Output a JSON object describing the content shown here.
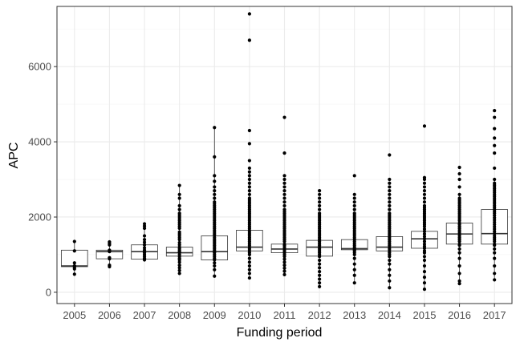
{
  "chart_data": {
    "type": "box",
    "xlabel": "Funding period",
    "ylabel": "APC",
    "ylim": [
      -300,
      7600
    ],
    "y_ticks": [
      0,
      2000,
      4000,
      6000
    ],
    "y_tick_labels": [
      "0",
      "2000",
      "4000",
      "6000"
    ],
    "categories": [
      "2005",
      "2006",
      "2007",
      "2008",
      "2009",
      "2010",
      "2011",
      "2012",
      "2013",
      "2014",
      "2015",
      "2016",
      "2017"
    ],
    "grid": true,
    "colors": {
      "panel_border": "#333333",
      "grid_major": "#ebebeb",
      "grid_minor": "#f5f5f5",
      "box_stroke": "#333333",
      "point": "#000000"
    },
    "boxes": [
      {
        "category": "2005",
        "q1": 680,
        "median": 700,
        "q3": 1120,
        "whisker_low": 480,
        "whisker_high": 1350,
        "points": [
          480,
          620,
          660,
          700,
          780,
          1100,
          1350
        ]
      },
      {
        "category": "2006",
        "q1": 890,
        "median": 1080,
        "q3": 1120,
        "whisker_low": 680,
        "whisker_high": 1340,
        "points": [
          680,
          720,
          890,
          920,
          1080,
          1100,
          1120,
          1260,
          1300,
          1340
        ]
      },
      {
        "category": "2007",
        "q1": 880,
        "median": 1080,
        "q3": 1260,
        "whisker_low": 860,
        "whisker_high": 1820,
        "points": [
          860,
          900,
          950,
          1000,
          1050,
          1080,
          1120,
          1180,
          1260,
          1330,
          1400,
          1500,
          1700,
          1760,
          1820
        ]
      },
      {
        "category": "2008",
        "q1": 960,
        "median": 1050,
        "q3": 1200,
        "whisker_low": 500,
        "whisker_high": 2840,
        "points": [
          500,
          580,
          650,
          720,
          800,
          860,
          900,
          950,
          1000,
          1050,
          1080,
          1120,
          1160,
          1200,
          1260,
          1320,
          1400,
          1450,
          1500,
          1550,
          1600,
          1700,
          1750,
          1800,
          1850,
          1900,
          1950,
          2000,
          2050,
          2100,
          2200,
          2300,
          2500,
          2600,
          2840
        ]
      },
      {
        "category": "2009",
        "q1": 860,
        "median": 1080,
        "q3": 1500,
        "whisker_low": 430,
        "whisker_high": 4380,
        "points": [
          430,
          600,
          700,
          780,
          860,
          900,
          950,
          1000,
          1050,
          1080,
          1120,
          1160,
          1200,
          1240,
          1280,
          1320,
          1360,
          1400,
          1450,
          1500,
          1550,
          1600,
          1650,
          1700,
          1750,
          1800,
          1850,
          1900,
          1950,
          2000,
          2050,
          2100,
          2150,
          2200,
          2250,
          2300,
          2350,
          2400,
          2500,
          2600,
          2700,
          2800,
          2950,
          3100,
          3600,
          4380
        ]
      },
      {
        "category": "2010",
        "q1": 1100,
        "median": 1200,
        "q3": 1650,
        "whisker_low": 380,
        "whisker_high": 3200,
        "points": [
          380,
          500,
          600,
          700,
          800,
          900,
          1000,
          1050,
          1100,
          1150,
          1200,
          1250,
          1300,
          1350,
          1400,
          1450,
          1500,
          1550,
          1600,
          1650,
          1700,
          1750,
          1800,
          1850,
          1900,
          1950,
          2000,
          2050,
          2100,
          2150,
          2200,
          2250,
          2300,
          2350,
          2400,
          2450,
          2500,
          2600,
          2700,
          2800,
          2900,
          3000,
          3100,
          3200,
          3300,
          3500,
          3950,
          4300,
          6700,
          7400
        ]
      },
      {
        "category": "2011",
        "q1": 1050,
        "median": 1150,
        "q3": 1280,
        "whisker_low": 470,
        "whisker_high": 1700,
        "points": [
          470,
          560,
          640,
          720,
          800,
          880,
          950,
          1000,
          1050,
          1100,
          1150,
          1200,
          1250,
          1280,
          1350,
          1400,
          1450,
          1500,
          1550,
          1600,
          1650,
          1700,
          1750,
          1800,
          1850,
          1900,
          1950,
          2000,
          2050,
          2100,
          2150,
          2200,
          2300,
          2400,
          2500,
          2600,
          2700,
          2800,
          2900,
          3000,
          3100,
          3700,
          4650
        ]
      },
      {
        "category": "2012",
        "q1": 960,
        "median": 1200,
        "q3": 1380,
        "whisker_low": 150,
        "whisker_high": 2000,
        "points": [
          150,
          250,
          350,
          450,
          550,
          650,
          750,
          850,
          950,
          1000,
          1050,
          1100,
          1150,
          1200,
          1250,
          1300,
          1350,
          1400,
          1450,
          1500,
          1550,
          1600,
          1650,
          1700,
          1750,
          1800,
          1850,
          1900,
          1950,
          2000,
          2050,
          2100,
          2200,
          2300,
          2400,
          2500,
          2600,
          2700
        ]
      },
      {
        "category": "2013",
        "q1": 1130,
        "median": 1160,
        "q3": 1400,
        "whisker_low": 250,
        "whisker_high": 2100,
        "points": [
          250,
          450,
          600,
          750,
          900,
          1000,
          1050,
          1100,
          1130,
          1160,
          1200,
          1250,
          1300,
          1350,
          1400,
          1450,
          1500,
          1550,
          1600,
          1650,
          1700,
          1750,
          1800,
          1850,
          1900,
          1950,
          2000,
          2050,
          2100,
          2200,
          2300,
          2400,
          2500,
          2600,
          3100
        ]
      },
      {
        "category": "2014",
        "q1": 1100,
        "median": 1200,
        "q3": 1480,
        "whisker_low": 120,
        "whisker_high": 2100,
        "points": [
          120,
          300,
          450,
          600,
          750,
          850,
          950,
          1000,
          1050,
          1100,
          1150,
          1200,
          1250,
          1300,
          1350,
          1400,
          1450,
          1500,
          1550,
          1600,
          1650,
          1700,
          1750,
          1800,
          1850,
          1900,
          1950,
          2000,
          2050,
          2100,
          2200,
          2300,
          2400,
          2500,
          2600,
          2700,
          2800,
          2900,
          3000,
          3650
        ]
      },
      {
        "category": "2015",
        "q1": 1170,
        "median": 1420,
        "q3": 1620,
        "whisker_low": 80,
        "whisker_high": 2300,
        "points": [
          80,
          250,
          400,
          550,
          700,
          850,
          950,
          1050,
          1100,
          1170,
          1220,
          1280,
          1350,
          1420,
          1480,
          1550,
          1620,
          1680,
          1750,
          1800,
          1850,
          1900,
          1950,
          2000,
          2050,
          2100,
          2150,
          2200,
          2250,
          2300,
          2400,
          2500,
          2600,
          2700,
          2800,
          2900,
          3000,
          3050,
          4420
        ]
      },
      {
        "category": "2016",
        "q1": 1280,
        "median": 1550,
        "q3": 1840,
        "whisker_low": 230,
        "whisker_high": 2600,
        "points": [
          230,
          300,
          500,
          700,
          900,
          1050,
          1150,
          1250,
          1280,
          1350,
          1400,
          1450,
          1500,
          1550,
          1600,
          1650,
          1700,
          1750,
          1800,
          1840,
          1900,
          1950,
          2000,
          2050,
          2100,
          2150,
          2200,
          2250,
          2300,
          2350,
          2400,
          2450,
          2500,
          2600,
          2800,
          3000,
          3150,
          3320
        ]
      },
      {
        "category": "2017",
        "q1": 1280,
        "median": 1560,
        "q3": 2200,
        "whisker_low": 330,
        "whisker_high": 3000,
        "points": [
          330,
          500,
          700,
          900,
          1050,
          1150,
          1250,
          1280,
          1350,
          1400,
          1450,
          1500,
          1560,
          1620,
          1680,
          1740,
          1800,
          1860,
          1920,
          1980,
          2040,
          2100,
          2150,
          2200,
          2250,
          2300,
          2350,
          2400,
          2450,
          2500,
          2550,
          2600,
          2650,
          2700,
          2750,
          2800,
          2850,
          2900,
          3000,
          3300,
          3700,
          3900,
          4100,
          4350,
          4650,
          4830
        ]
      }
    ]
  }
}
